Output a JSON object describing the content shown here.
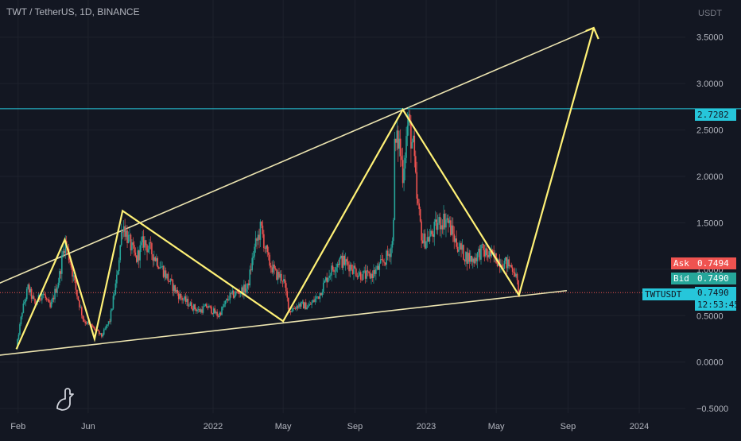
{
  "header": {
    "title": "TWT / TetherUS, 1D, BINANCE"
  },
  "axis": {
    "unit": "USDT"
  },
  "price_tags": {
    "resistance": "2.7282",
    "ask_label": "Ask",
    "ask": "0.7494",
    "bid_label": "Bid",
    "bid": "0.7490",
    "symbol": "TWTUSDT",
    "last": "0.7490",
    "countdown": "12:53:45"
  },
  "colors": {
    "background": "#131722",
    "up": "#26a69a",
    "down": "#ef5350",
    "pattern": "#fff176",
    "trendline": "#ece4b0",
    "resistance_line": "#26c6da",
    "ask_bg": "#ef5350",
    "bid_bg": "#26a69a",
    "last_bg": "#26c6da"
  },
  "chart_data": {
    "type": "candlestick",
    "title": "TWT / TetherUS, 1D, BINANCE",
    "ylabel": "USDT",
    "ylim": [
      -0.55,
      3.9
    ],
    "yticks": [
      -0.5,
      0,
      0.5,
      1,
      1.5,
      2,
      2.5,
      3,
      3.5
    ],
    "ytick_labels": [
      "−0.5000",
      "0.0000",
      "0.5000",
      "1.0000",
      "1.5000",
      "2.0000",
      "2.5000",
      "3.0000",
      "3.5000"
    ],
    "xlim": [
      "2021-01-01",
      "2024-03-20"
    ],
    "xticks": [
      {
        "date": "2021-02-01",
        "label": "Feb"
      },
      {
        "date": "2021-06-01",
        "label": "Jun"
      },
      {
        "date": "2022-01-01",
        "label": "2022"
      },
      {
        "date": "2022-05-01",
        "label": "May"
      },
      {
        "date": "2022-09-01",
        "label": "Sep"
      },
      {
        "date": "2023-01-01",
        "label": "2023"
      },
      {
        "date": "2023-05-01",
        "label": "May"
      },
      {
        "date": "2023-09-01",
        "label": "Sep"
      },
      {
        "date": "2024-01-01",
        "label": "2024"
      }
    ],
    "price_path": [
      [
        "2021-01-29",
        0.15
      ],
      [
        "2021-02-08",
        0.55
      ],
      [
        "2021-02-18",
        0.8
      ],
      [
        "2021-03-02",
        0.62
      ],
      [
        "2021-03-15",
        0.75
      ],
      [
        "2021-03-28",
        0.58
      ],
      [
        "2021-04-12",
        0.9
      ],
      [
        "2021-04-22",
        1.3
      ],
      [
        "2021-05-01",
        1.1
      ],
      [
        "2021-05-12",
        0.75
      ],
      [
        "2021-05-24",
        0.45
      ],
      [
        "2021-06-08",
        0.38
      ],
      [
        "2021-06-24",
        0.28
      ],
      [
        "2021-07-08",
        0.45
      ],
      [
        "2021-07-20",
        0.9
      ],
      [
        "2021-07-30",
        1.5
      ],
      [
        "2021-08-10",
        1.3
      ],
      [
        "2021-08-22",
        1.1
      ],
      [
        "2021-09-04",
        1.3
      ],
      [
        "2021-09-16",
        1.2
      ],
      [
        "2021-10-02",
        1.05
      ],
      [
        "2021-10-20",
        0.85
      ],
      [
        "2021-11-06",
        0.7
      ],
      [
        "2021-11-22",
        0.62
      ],
      [
        "2021-12-08",
        0.55
      ],
      [
        "2021-12-22",
        0.6
      ],
      [
        "2022-01-10",
        0.5
      ],
      [
        "2022-01-28",
        0.7
      ],
      [
        "2022-02-12",
        0.75
      ],
      [
        "2022-03-01",
        0.8
      ],
      [
        "2022-03-12",
        1.2
      ],
      [
        "2022-03-24",
        1.45
      ],
      [
        "2022-04-05",
        1.1
      ],
      [
        "2022-04-18",
        0.95
      ],
      [
        "2022-05-01",
        0.9
      ],
      [
        "2022-05-12",
        0.55
      ],
      [
        "2022-05-28",
        0.62
      ],
      [
        "2022-06-14",
        0.6
      ],
      [
        "2022-07-01",
        0.72
      ],
      [
        "2022-07-18",
        0.95
      ],
      [
        "2022-08-05",
        1.1
      ],
      [
        "2022-08-22",
        1.05
      ],
      [
        "2022-09-08",
        0.95
      ],
      [
        "2022-09-25",
        0.92
      ],
      [
        "2022-10-10",
        1.0
      ],
      [
        "2022-10-28",
        1.15
      ],
      [
        "2022-11-05",
        1.3
      ],
      [
        "2022-11-08",
        2.3
      ],
      [
        "2022-11-15",
        2.4
      ],
      [
        "2022-11-22",
        2.05
      ],
      [
        "2022-12-01",
        2.6
      ],
      [
        "2022-12-10",
        2.3
      ],
      [
        "2022-12-16",
        1.75
      ],
      [
        "2022-12-26",
        1.3
      ],
      [
        "2023-01-08",
        1.35
      ],
      [
        "2023-01-22",
        1.5
      ],
      [
        "2023-02-05",
        1.55
      ],
      [
        "2023-02-20",
        1.3
      ],
      [
        "2023-03-08",
        1.15
      ],
      [
        "2023-03-22",
        1.1
      ],
      [
        "2023-04-05",
        1.2
      ],
      [
        "2023-04-20",
        1.15
      ],
      [
        "2023-05-05",
        1.1
      ],
      [
        "2023-05-22",
        1.05
      ],
      [
        "2023-06-01",
        1.0
      ],
      [
        "2023-06-09",
        0.75
      ]
    ],
    "pattern_polyline": [
      [
        "2021-01-29",
        0.14
      ],
      [
        "2021-04-22",
        1.32
      ],
      [
        "2021-06-12",
        0.25
      ],
      [
        "2021-07-30",
        1.63
      ],
      [
        "2022-05-01",
        0.44
      ],
      [
        "2022-11-22",
        2.72
      ],
      [
        "2023-06-09",
        0.72
      ],
      [
        "2023-10-15",
        3.6
      ]
    ],
    "trendlines": [
      {
        "name": "upper",
        "from": [
          "2020-12-20",
          0.82
        ],
        "to": [
          "2023-10-15",
          3.6
        ]
      },
      {
        "name": "lower",
        "from": [
          "2020-12-25",
          0.07
        ],
        "to": [
          "2023-08-30",
          0.77
        ]
      }
    ],
    "horizontal_line": 2.7282,
    "current_price": 0.749,
    "ask": 0.7494,
    "bid": 0.749
  }
}
